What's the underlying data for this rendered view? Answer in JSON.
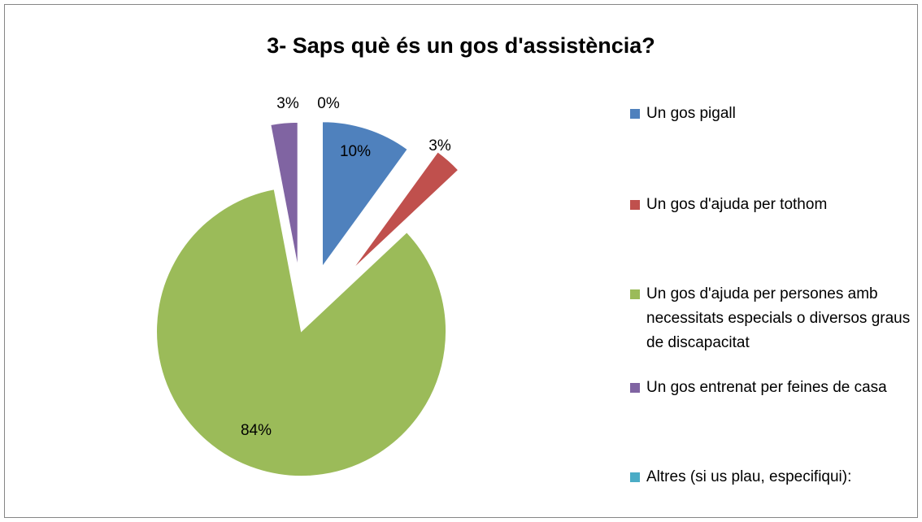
{
  "chart_data": {
    "type": "pie",
    "title": "3- Saps què és un gos d'assistència?",
    "categories": [
      "Un gos pigall",
      "Un gos d'ajuda per tothom",
      "Un gos d'ajuda per persones amb necessitats especials o diversos graus de discapacitat",
      "Un gos entrenat per feines de casa",
      "Altres (si us plau, especifiqui):"
    ],
    "values": [
      10,
      3,
      84,
      3,
      0
    ],
    "value_labels": [
      "10%",
      "3%",
      "84%",
      "3%",
      "0%"
    ],
    "colors": [
      "#4f81bd",
      "#c0504d",
      "#9bbb59",
      "#8064a2",
      "#4bacc6"
    ],
    "legend": "right"
  }
}
